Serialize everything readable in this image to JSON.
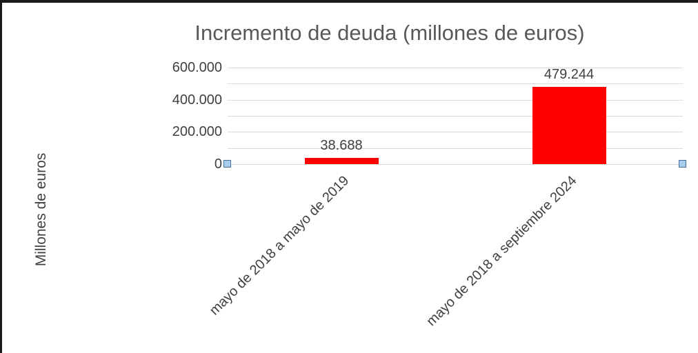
{
  "chart_data": {
    "type": "bar",
    "title": "Incremento de deuda (millones de euros)",
    "ylabel": "Millones de euros",
    "xlabel": "",
    "categories": [
      "mayo de 2018 a mayo de 2019",
      "mayo de 2018 a septiembre 2024"
    ],
    "values": [
      38688,
      479244
    ],
    "data_labels": [
      "38.688",
      "479.244"
    ],
    "yticks": [
      {
        "value": 0,
        "label": "0"
      },
      {
        "value": 200000,
        "label": "200.000"
      },
      {
        "value": 400000,
        "label": "400.000"
      },
      {
        "value": 600000,
        "label": "600.000"
      }
    ],
    "ylim": [
      0,
      600000
    ],
    "gridline_interval": 100000,
    "grid": true,
    "legend": false
  },
  "colors": {
    "bar": "#ff0000",
    "title_text": "#595959",
    "axis_text": "#404040",
    "gridline": "#d9d9d9",
    "handle_fill": "#a8ccea",
    "handle_border": "#41719c",
    "frame_border": "#1a1a1a"
  }
}
